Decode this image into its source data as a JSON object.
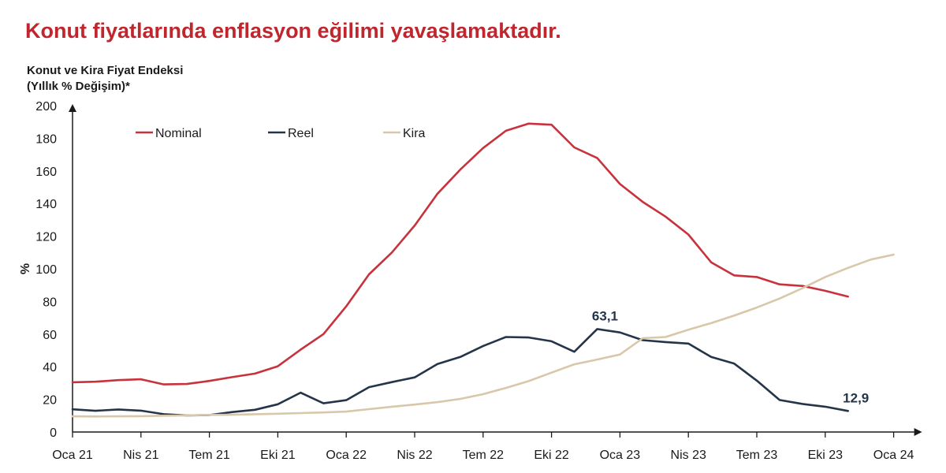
{
  "headline": "Konut fiyatlarında enflasyon eğilimi yavaşlamaktadır.",
  "chart_data": {
    "type": "line",
    "title_line1": "Konut ve Kira Fiyat Endeksi",
    "title_line2": "(Yıllık % Değişim)*",
    "ylabel": "%",
    "xlabel": "",
    "ylim": [
      0,
      200
    ],
    "y_ticks": [
      0,
      20,
      40,
      60,
      80,
      100,
      120,
      140,
      160,
      180,
      200
    ],
    "x_ticks": [
      "Oca 21",
      "Nis 21",
      "Tem 21",
      "Eki 21",
      "Oca 22",
      "Nis 22",
      "Tem 22",
      "Eki 22",
      "Oca 23",
      "Nis 23",
      "Tem 23",
      "Eki 23",
      "Oca 24"
    ],
    "x": [
      "Oca 21",
      "Şub 21",
      "Mar 21",
      "Nis 21",
      "May 21",
      "Haz 21",
      "Tem 21",
      "Ağu 21",
      "Eyl 21",
      "Eki 21",
      "Kas 21",
      "Ara 21",
      "Oca 22",
      "Şub 22",
      "Mar 22",
      "Nis 22",
      "May 22",
      "Haz 22",
      "Tem 22",
      "Ağu 22",
      "Eyl 22",
      "Eki 22",
      "Kas 22",
      "Ara 22",
      "Oca 23",
      "Şub 23",
      "Mar 23",
      "Nis 23",
      "May 23",
      "Haz 23",
      "Tem 23",
      "Ağu 23",
      "Eyl 23",
      "Eki 23",
      "Kas 23",
      "Ara 23",
      "Oca 24"
    ],
    "grid": false,
    "legend_position": "top-left",
    "series": [
      {
        "name": "Nominal",
        "color": "#c8323c",
        "values": [
          30.5,
          30.8,
          31.8,
          32.3,
          29.2,
          29.4,
          31.3,
          33.6,
          35.8,
          40.3,
          50.5,
          60.0,
          77.0,
          96.6,
          110.0,
          126.5,
          146.0,
          160.8,
          174.0,
          184.6,
          189.0,
          188.3,
          174.4,
          167.9,
          152.0,
          141.0,
          132.0,
          121.0,
          104.0,
          96.0,
          95.0,
          90.5,
          89.5,
          86.5,
          83.0,
          null,
          null
        ]
      },
      {
        "name": "Reel",
        "color": "#253549",
        "values": [
          13.9,
          13.0,
          13.8,
          13.1,
          10.9,
          10.2,
          10.4,
          12.2,
          13.6,
          17.0,
          24.1,
          17.6,
          19.5,
          27.5,
          30.6,
          33.5,
          41.7,
          46.0,
          52.7,
          58.2,
          57.9,
          55.6,
          49.2,
          63.1,
          61.0,
          56.3,
          55.1,
          54.2,
          46.0,
          42.0,
          31.5,
          19.6,
          17.2,
          15.5,
          12.9,
          null,
          null
        ]
      },
      {
        "name": "Kira",
        "color": "#d9c7aa",
        "values": [
          9.6,
          9.5,
          9.6,
          9.7,
          10.0,
          10.2,
          10.5,
          10.6,
          10.9,
          11.2,
          11.6,
          12.0,
          12.5,
          14.0,
          15.5,
          16.8,
          18.3,
          20.3,
          23.2,
          27.0,
          31.2,
          36.4,
          41.5,
          44.4,
          47.5,
          57.5,
          58.2,
          62.7,
          66.7,
          71.3,
          76.3,
          81.8,
          88.1,
          95.0,
          100.6,
          105.7,
          108.7
        ]
      }
    ],
    "annotations": [
      {
        "text": "63,1",
        "series": "Reel",
        "x": "Ara 22",
        "y": 63.1
      },
      {
        "text": "12,9",
        "series": "Reel",
        "x": "Kas 23",
        "y": 12.9
      }
    ]
  }
}
